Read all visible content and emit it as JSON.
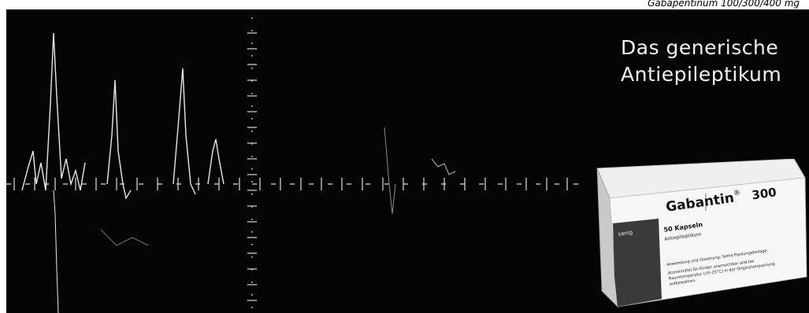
{
  "caption": "Gabapentinum 100/300/400 mg",
  "headline": {
    "line1": "Das generische",
    "line2": "Antiepileptikum"
  },
  "product": {
    "name": "Gabantin",
    "registered_mark": "®",
    "dose": "300",
    "count": "50 Kapseln",
    "subtitle": "Antiepileptikum",
    "manufacturer": "sanig",
    "fine_print": [
      "Anwendung und Dosierung: Siehe Packungsbeilage.",
      "Arzneimittel für Kinder unerreichbar und bei",
      "Raumtemperatur (15–25°C) in der Originalverpackung",
      "aufbewahren."
    ]
  },
  "colors": {
    "panel_background": "#050505",
    "headline_text": "#f2f2f2",
    "box_face": "#f7f7f7",
    "box_side": "#c9c9c9",
    "box_band": "#3a3a3a",
    "signal_trace": "#e8e8e8"
  }
}
